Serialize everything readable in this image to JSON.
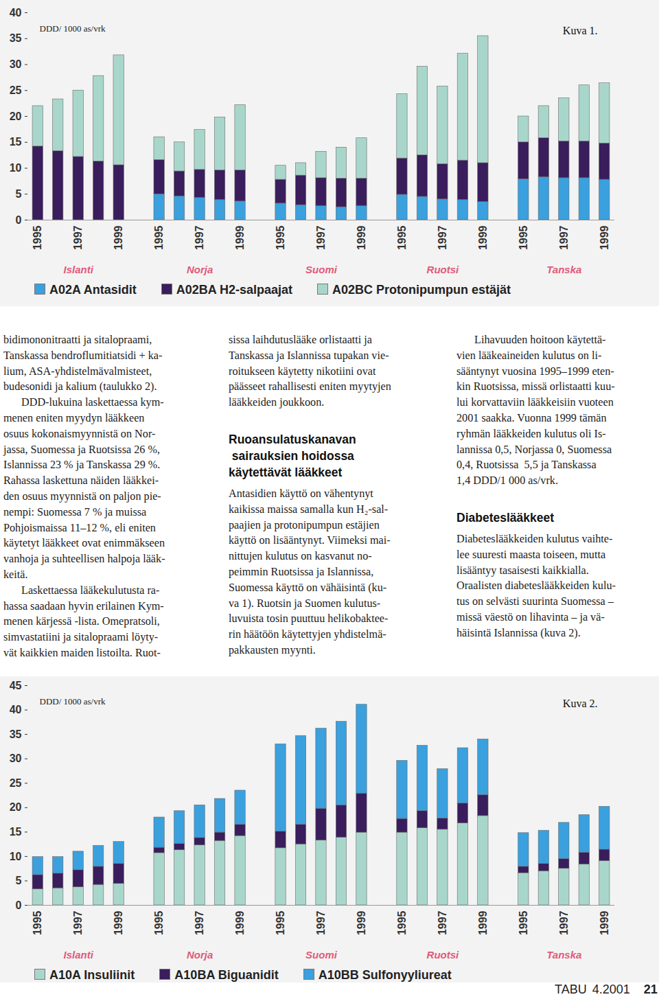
{
  "chart_data": [
    {
      "type": "bar",
      "stacked": true,
      "grid": false,
      "legend": "bottom",
      "title": "Kuva 1.",
      "ylabel": "DDD/ 1000 as/vrk",
      "categories": [
        "1995",
        null,
        "1997",
        null,
        "1999",
        "1995",
        null,
        "1997",
        null,
        "1999",
        "1995",
        null,
        "1997",
        null,
        "1999",
        "1995",
        null,
        "1997",
        null,
        "1999",
        "1995",
        null,
        "1997",
        null,
        "1999"
      ],
      "group_labels": [
        "Islanti",
        "Norja",
        "Suomi",
        "Ruotsi",
        "Tanska"
      ],
      "series": [
        {
          "name": "A02A Antasidit",
          "color": "#3aa0de",
          "values": [
            0,
            0,
            0,
            0,
            0,
            5.0,
            4.6,
            4.3,
            3.9,
            3.6,
            3.2,
            2.9,
            2.7,
            2.5,
            2.7,
            4.9,
            4.5,
            4.0,
            3.9,
            3.5,
            7.9,
            8.3,
            8.1,
            8.1,
            7.8
          ]
        },
        {
          "name": "A02BA H2-salpaajat",
          "color": "#3a1d5c",
          "values": [
            14.2,
            13.3,
            12.2,
            11.3,
            10.6,
            6.6,
            4.8,
            5.4,
            5.7,
            6.0,
            4.6,
            5.7,
            5.4,
            5.5,
            5.3,
            7.0,
            8.0,
            6.8,
            7.6,
            7.5,
            7.1,
            7.5,
            7.1,
            7.1,
            7.0
          ]
        },
        {
          "name": "A02BC Protonipumpun estäjät",
          "color": "#a9d6cb",
          "values": [
            7.8,
            10.0,
            12.8,
            16.5,
            21.2,
            4.4,
            5.6,
            7.7,
            10.2,
            12.6,
            2.7,
            2.4,
            5.1,
            6.0,
            7.8,
            12.4,
            17.1,
            15.0,
            20.6,
            24.5,
            5.0,
            6.2,
            8.3,
            10.8,
            11.6
          ]
        }
      ],
      "ylim": [
        0,
        40
      ],
      "yticks": [
        0,
        5,
        10,
        15,
        20,
        25,
        30,
        35,
        40
      ]
    },
    {
      "type": "bar",
      "stacked": true,
      "grid": false,
      "legend": "bottom",
      "title": "Kuva 2.",
      "ylabel": "DDD/ 1000 as/vrk",
      "categories": [
        "1995",
        null,
        "1997",
        null,
        "1999",
        "1995",
        null,
        "1997",
        null,
        "1999",
        "1995",
        null,
        "1997",
        null,
        "1999",
        "1995",
        null,
        "1997",
        null,
        "1999",
        "1995",
        null,
        "1997",
        null,
        "1999"
      ],
      "group_labels": [
        "Islanti",
        "Norja",
        "Suomi",
        "Ruotsi",
        "Tanska"
      ],
      "series": [
        {
          "name": "A10A Insuliinit",
          "color": "#a9d6cb",
          "values": [
            3.3,
            3.5,
            3.7,
            4.2,
            4.4,
            10.7,
            11.3,
            12.3,
            13.2,
            14.2,
            11.7,
            12.5,
            13.3,
            13.9,
            14.9,
            14.9,
            15.8,
            15.5,
            16.8,
            18.3,
            6.6,
            7.0,
            7.5,
            8.4,
            9.1
          ]
        },
        {
          "name": "A10BA Biguanidit",
          "color": "#3a1d5c",
          "values": [
            2.9,
            3.0,
            3.5,
            3.7,
            4.1,
            1.1,
            1.3,
            1.5,
            1.7,
            2.3,
            3.4,
            4.0,
            6.5,
            6.6,
            8.0,
            2.8,
            3.5,
            2.3,
            4.1,
            4.3,
            1.3,
            1.5,
            2.0,
            2.4,
            2.3
          ]
        },
        {
          "name": "A10BB Sulfonyyliureat",
          "color": "#3aa0de",
          "values": [
            3.7,
            3.4,
            3.8,
            4.3,
            4.5,
            6.2,
            6.7,
            6.7,
            6.9,
            7.0,
            17.9,
            18.2,
            16.4,
            17.1,
            18.2,
            11.9,
            13.4,
            10.1,
            11.3,
            11.4,
            6.9,
            6.8,
            7.4,
            7.7,
            8.8
          ]
        }
      ],
      "ylim": [
        0,
        45
      ],
      "yticks": [
        0,
        5,
        10,
        15,
        20,
        25,
        30,
        35,
        40,
        45
      ]
    }
  ],
  "text": {
    "columns": [
      [
        {
          "type": "p0",
          "lines": [
            "bidimononitraatti ja sitalopraami,",
            "Tanskassa bendroflumitiatsidi + ka-",
            "lium, ASA-yhdistelmävalmisteet,",
            "budesonidi ja kalium (taulukko 2)."
          ]
        },
        {
          "type": "p",
          "lines": [
            "DDD-lukuina laskettaessa kym-",
            "menen eniten myydyn lääkkeen",
            "osuus kokonaismyynnistä on Nor-",
            "jassa, Suomessa ja Ruotsissa 26 %,",
            "Islannissa 23 % ja Tanskassa 29 %.",
            "Rahassa laskettuna näiden lääkkei-",
            "den osuus myynnistä on paljon pie-",
            "nempi: Suomessa 7 % ja muissa",
            "Pohjoismaissa 11–12 %, eli eniten",
            "käytetyt lääkkeet ovat enimmäkseen",
            "vanhoja ja suhteellisen halpoja lääk-",
            "keitä."
          ]
        },
        {
          "type": "p",
          "lines": [
            "Laskettaessa lääkekulutusta ra-",
            "hassa saadaan hyvin erilainen Kym-",
            "menen kärjessä -lista. Omepratsoli,",
            "simvastatiini ja sitalopraami löyty-",
            "vät kaikkien maiden listoilta. Ruot-"
          ]
        }
      ],
      [
        {
          "type": "p0",
          "lines": [
            "sissa laihdutuslääke orlistaatti ja",
            "Tanskassa ja Islannissa tupakan vie-",
            "roitukseen käytetty nikotiini ovat",
            "päässeet rahallisesti eniten myytyjen",
            "lääkkeiden joukkoon."
          ]
        },
        {
          "type": "h",
          "lines": [
            "Ruoansulatuskanavan",
            " sairauksien hoidossa",
            "käytettävät lääkkeet"
          ]
        },
        {
          "type": "p0",
          "lines": [
            "Antasidien käyttö on vähentynyt",
            "kaikissa maissa samalla kun H₂-sal-",
            "paajien ja protonipumpun estäjien",
            "käyttö on lisääntynyt. Viimeksi mai-",
            "nittujen kulutus on kasvanut no-",
            "peimmin Ruotsissa ja Islannissa,",
            "Suomessa käyttö on vähäisintä (ku-",
            "va 1). Ruotsin ja Suomen kulutus-",
            "luvuista tosin puuttuu helikobaktee-",
            "rin häätöön käytettyjen yhdistelmä-",
            "pakkausten myynti."
          ]
        }
      ],
      [
        {
          "type": "p",
          "lines": [
            "Lihavuuden hoitoon käytettä-",
            "vien lääkeaineiden kulutus on li-",
            "sääntynyt vuosina 1995–1999 eten-",
            "kin Ruotsissa, missä orlistaatti kuu-",
            "lui korvattaviin lääkkeisiin vuoteen",
            "2001 saakka. Vuonna 1999 tämän",
            "ryhmän lääkkeiden kulutus oli Is-",
            "lannissa 0,5, Norjassa 0, Suomessa",
            "0,4, Ruotsissa  5,5 ja Tanskassa",
            "1,4 DDD/1 000 as/vrk."
          ]
        },
        {
          "type": "h",
          "lines": [
            "Diabeteslääkkeet"
          ]
        },
        {
          "type": "p0",
          "lines": [
            "Diabeteslääkkeiden kulutus vaihte-",
            "lee suuresti maasta toiseen, mutta",
            "lisääntyy tasaisesti kaikkialla.",
            "Oraalisten diabeteslääkkeiden kulu-",
            "tus on selvästi suurinta Suomessa –",
            "missä väestö on lihavinta – ja vä-",
            "häisintä Islannissa (kuva 2)."
          ]
        }
      ]
    ]
  },
  "footer": {
    "journal": "TABU",
    "issue": "4.2001",
    "page": "21"
  }
}
